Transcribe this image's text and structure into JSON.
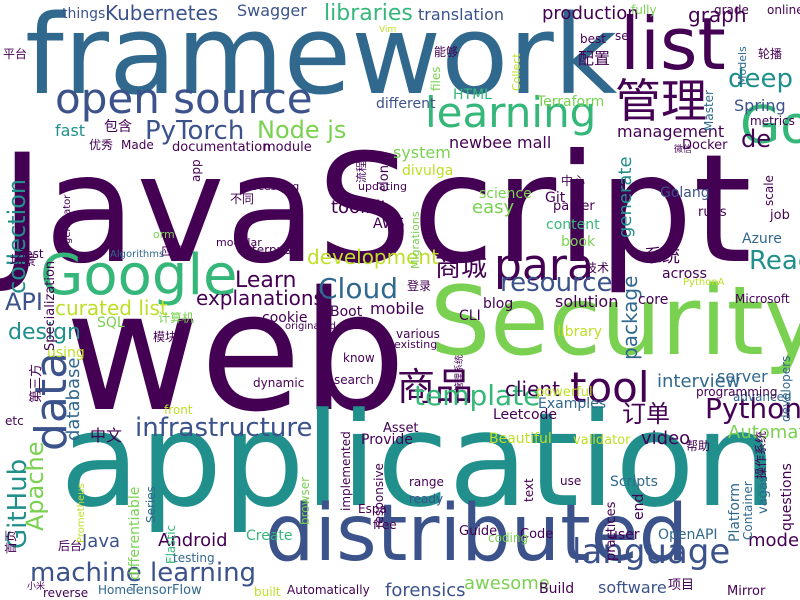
{
  "palette": {
    "purple": "#440154",
    "indigo": "#3b528b",
    "blue": "#31688e",
    "teal": "#21908c",
    "green": "#35b779",
    "lime": "#7ad151",
    "yellow": "#bddf26"
  },
  "words": [
    {
      "text": "JavaScript",
      "color": "purple"
    },
    {
      "text": "web",
      "color": "purple"
    },
    {
      "text": "framework",
      "color": "blue"
    },
    {
      "text": "application",
      "color": "teal"
    },
    {
      "text": "Security",
      "color": "lime"
    },
    {
      "text": "distributed",
      "color": "indigo"
    },
    {
      "text": "list",
      "color": "purple"
    },
    {
      "text": "Google",
      "color": "green"
    },
    {
      "text": "open source",
      "color": "indigo"
    },
    {
      "text": "管理",
      "color": "purple"
    },
    {
      "text": "learning",
      "color": "green"
    },
    {
      "text": "para",
      "color": "purple"
    },
    {
      "text": "Go",
      "color": "green"
    },
    {
      "text": "data",
      "color": "indigo"
    },
    {
      "text": "language",
      "color": "indigo"
    },
    {
      "text": "machine learning",
      "color": "indigo"
    },
    {
      "text": "tool",
      "color": "purple"
    },
    {
      "text": "商品",
      "color": "purple"
    },
    {
      "text": "template",
      "color": "green"
    },
    {
      "text": "Python",
      "color": "purple"
    },
    {
      "text": "infrastructure",
      "color": "indigo"
    },
    {
      "text": "resource",
      "color": "indigo"
    },
    {
      "text": "Cloud",
      "color": "blue"
    },
    {
      "text": "商城",
      "color": "purple"
    },
    {
      "text": "React",
      "color": "teal"
    },
    {
      "text": "GitHub",
      "color": "teal"
    },
    {
      "text": "Apache",
      "color": "lime"
    },
    {
      "text": "collection",
      "color": "teal"
    },
    {
      "text": "deep",
      "color": "teal"
    },
    {
      "text": "PyTorch",
      "color": "indigo"
    },
    {
      "text": "Node js",
      "color": "lime"
    },
    {
      "text": "Kubernetes",
      "color": "indigo"
    },
    {
      "text": "libraries",
      "color": "green"
    },
    {
      "text": "API",
      "color": "indigo"
    },
    {
      "text": "Learn",
      "color": "purple"
    },
    {
      "text": "development",
      "color": "yellow"
    },
    {
      "text": "explanations",
      "color": "purple"
    },
    {
      "text": "design",
      "color": "teal"
    },
    {
      "text": "curated list",
      "color": "yellow"
    },
    {
      "text": "订单",
      "color": "purple"
    },
    {
      "text": "interview",
      "color": "blue"
    },
    {
      "text": "Automated",
      "color": "lime"
    },
    {
      "text": "de",
      "color": "purple"
    },
    {
      "text": "production",
      "color": "purple"
    },
    {
      "text": "graph",
      "color": "purple"
    },
    {
      "text": "Swagger",
      "color": "indigo"
    },
    {
      "text": "translation",
      "color": "indigo"
    },
    {
      "text": "mobile",
      "color": "purple"
    },
    {
      "text": "client",
      "color": "purple"
    },
    {
      "text": "server",
      "color": "blue"
    },
    {
      "text": "modern",
      "color": "purple"
    },
    {
      "text": "Android",
      "color": "purple"
    },
    {
      "text": "Java",
      "color": "indigo"
    },
    {
      "text": "forensics",
      "color": "indigo"
    },
    {
      "text": "awesome",
      "color": "lime"
    },
    {
      "text": "video",
      "color": "purple"
    },
    {
      "text": "software",
      "color": "indigo"
    },
    {
      "text": "package",
      "color": "blue"
    },
    {
      "text": "generate",
      "color": "teal"
    },
    {
      "text": "Spring",
      "color": "indigo"
    },
    {
      "text": "Golang",
      "color": "indigo"
    },
    {
      "text": "Git",
      "color": "purple"
    },
    {
      "text": "easy",
      "color": "lime"
    },
    {
      "text": "toolkit",
      "color": "purple"
    },
    {
      "text": "system",
      "color": "lime"
    },
    {
      "text": "newbee mall",
      "color": "purple"
    },
    {
      "text": "Terraform",
      "color": "lime"
    },
    {
      "text": "HTML",
      "color": "green"
    },
    {
      "text": "different",
      "color": "indigo"
    },
    {
      "text": "配置",
      "color": "purple"
    },
    {
      "text": "系统",
      "color": "purple"
    },
    {
      "text": "management",
      "color": "purple"
    },
    {
      "text": "solution",
      "color": "purple"
    },
    {
      "text": "Microsoft",
      "color": "purple"
    },
    {
      "text": "Azure",
      "color": "blue"
    },
    {
      "text": "database",
      "color": "blue"
    },
    {
      "text": "中文",
      "color": "purple"
    },
    {
      "text": "Leetcode",
      "color": "purple"
    },
    {
      "text": "Beautiful",
      "color": "yellow"
    },
    {
      "text": "Provide",
      "color": "purple"
    },
    {
      "text": "documentation",
      "color": "purple"
    },
    {
      "text": "module",
      "color": "purple"
    },
    {
      "text": "Docker",
      "color": "purple"
    },
    {
      "text": "包含",
      "color": "purple"
    },
    {
      "text": "fast",
      "color": "teal"
    },
    {
      "text": "Made",
      "color": "purple"
    },
    {
      "text": "优秀",
      "color": "purple"
    },
    {
      "text": "things",
      "color": "indigo"
    },
    {
      "text": "online",
      "color": "purple"
    },
    {
      "text": "grade",
      "color": "purple"
    },
    {
      "text": "fully",
      "color": "lime"
    },
    {
      "text": "best",
      "color": "purple"
    },
    {
      "text": "set",
      "color": "purple"
    },
    {
      "text": "能够",
      "color": "purple"
    },
    {
      "text": "files",
      "color": "lime"
    },
    {
      "text": "轮播",
      "color": "purple"
    },
    {
      "text": "平台",
      "color": "purple"
    },
    {
      "text": "metrics",
      "color": "purple"
    },
    {
      "text": "Master",
      "color": "blue"
    },
    {
      "text": "Models",
      "color": "blue"
    },
    {
      "text": "Collect",
      "color": "yellow"
    },
    {
      "text": "divulga",
      "color": "yellow"
    },
    {
      "text": "science",
      "color": "lime"
    },
    {
      "text": "content",
      "color": "green"
    },
    {
      "text": "parser",
      "color": "purple"
    },
    {
      "text": "中心",
      "color": "purple"
    },
    {
      "text": "book",
      "color": "lime"
    },
    {
      "text": "runs",
      "color": "purple"
    },
    {
      "text": "job",
      "color": "purple"
    },
    {
      "text": "AWS",
      "color": "purple"
    },
    {
      "text": "across",
      "color": "purple"
    },
    {
      "text": "core",
      "color": "purple"
    },
    {
      "text": "blog",
      "color": "purple"
    },
    {
      "text": "CLI",
      "color": "purple"
    },
    {
      "text": "library",
      "color": "yellow"
    },
    {
      "text": "Boot",
      "color": "purple"
    },
    {
      "text": "SQL",
      "color": "lime"
    },
    {
      "text": "cookie",
      "color": "purple"
    },
    {
      "text": "using",
      "color": "yellow"
    },
    {
      "text": "know",
      "color": "purple"
    },
    {
      "text": "search",
      "color": "purple"
    },
    {
      "text": "various",
      "color": "purple"
    },
    {
      "text": "existing",
      "color": "purple"
    },
    {
      "text": "dynamic",
      "color": "purple"
    },
    {
      "text": "front",
      "color": "yellow"
    },
    {
      "text": "Asset",
      "color": "purple"
    },
    {
      "text": "Examples",
      "color": "blue"
    },
    {
      "text": "powerful",
      "color": "yellow"
    },
    {
      "text": "advanced",
      "color": "blue"
    },
    {
      "text": "programming",
      "color": "purple"
    },
    {
      "text": "developers",
      "color": "blue"
    },
    {
      "text": "validator",
      "color": "yellow"
    },
    {
      "text": "帮助",
      "color": "purple"
    },
    {
      "text": "text",
      "color": "purple"
    },
    {
      "text": "use",
      "color": "purple"
    },
    {
      "text": "range",
      "color": "purple"
    },
    {
      "text": "ready",
      "color": "indigo"
    },
    {
      "text": "free",
      "color": "purple"
    },
    {
      "text": "Espa",
      "color": "purple"
    },
    {
      "text": "implemented",
      "color": "purple"
    },
    {
      "text": "responsive",
      "color": "purple"
    },
    {
      "text": "browser",
      "color": "lime"
    },
    {
      "text": "Elastic",
      "color": "green"
    },
    {
      "text": "Scripts",
      "color": "blue"
    },
    {
      "text": "end",
      "color": "purple"
    },
    {
      "text": "Platform",
      "color": "blue"
    },
    {
      "text": "Container",
      "color": "blue"
    },
    {
      "text": "vagas",
      "color": "blue"
    },
    {
      "text": "questions",
      "color": "purple"
    },
    {
      "text": "practices",
      "color": "purple"
    },
    {
      "text": "user",
      "color": "purple"
    },
    {
      "text": "OpenAPI",
      "color": "blue"
    },
    {
      "text": "Code",
      "color": "purple"
    },
    {
      "text": "Guide",
      "color": "purple"
    },
    {
      "text": "coding",
      "color": "lime"
    },
    {
      "text": "Create",
      "color": "green"
    },
    {
      "text": "testing",
      "color": "blue"
    },
    {
      "text": "Series",
      "color": "blue"
    },
    {
      "text": "differentiable",
      "color": "lime"
    },
    {
      "text": "Home",
      "color": "blue"
    },
    {
      "text": "TensorFlow",
      "color": "blue"
    },
    {
      "text": "reverse",
      "color": "purple"
    },
    {
      "text": "built",
      "color": "yellow"
    },
    {
      "text": "Automatically",
      "color": "purple"
    },
    {
      "text": "Build",
      "color": "purple"
    },
    {
      "text": "项目",
      "color": "purple"
    },
    {
      "text": "Mirror",
      "color": "purple"
    },
    {
      "text": "etc",
      "color": "purple"
    },
    {
      "text": "后台",
      "color": "purple"
    },
    {
      "text": "首页",
      "color": "purple"
    },
    {
      "text": "第三方",
      "color": "purple"
    },
    {
      "text": "场景",
      "color": "purple"
    },
    {
      "text": "模块",
      "color": "purple"
    },
    {
      "text": "计算机",
      "color": "lime"
    },
    {
      "text": "应用",
      "color": "purple"
    },
    {
      "text": "Algorithms",
      "color": "blue"
    },
    {
      "text": "modular",
      "color": "purple"
    },
    {
      "text": "orm",
      "color": "lime"
    },
    {
      "text": "Test",
      "color": "purple"
    },
    {
      "text": "Specialization",
      "color": "purple"
    },
    {
      "text": "generator",
      "color": "purple"
    },
    {
      "text": "app",
      "color": "purple"
    },
    {
      "text": "processing",
      "color": "purple"
    },
    {
      "text": "不同",
      "color": "purple"
    },
    {
      "text": "enterprise",
      "color": "purple"
    },
    {
      "text": "updating",
      "color": "purple"
    },
    {
      "text": "clone",
      "color": "purple"
    },
    {
      "text": "Migrations",
      "color": "lime"
    },
    {
      "text": "流程",
      "color": "purple"
    },
    {
      "text": "登录",
      "color": "purple"
    },
    {
      "text": "技术",
      "color": "purple"
    },
    {
      "text": "PythonA",
      "color": "yellow"
    },
    {
      "text": "scale",
      "color": "purple"
    },
    {
      "text": "originated",
      "color": "purple"
    },
    {
      "text": "Prometheus",
      "color": "yellow"
    },
    {
      "text": "管理系统",
      "color": "purple"
    },
    {
      "text": "微信",
      "color": "purple"
    },
    {
      "text": "操作系统",
      "color": "purple"
    },
    {
      "text": "小米",
      "color": "purple"
    },
    {
      "text": "Vim",
      "color": "yellow"
    }
  ]
}
